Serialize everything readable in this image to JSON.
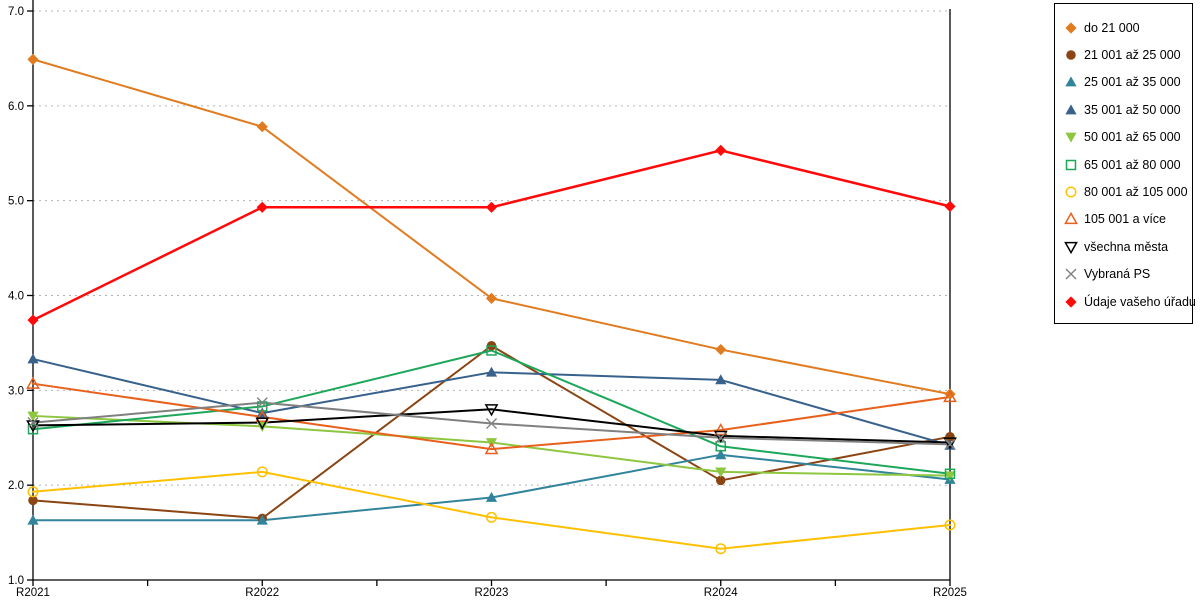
{
  "chart_data": {
    "type": "line",
    "title": "",
    "xlabel": "",
    "ylabel": "",
    "x_categories": [
      "R2021",
      "R2022",
      "R2023",
      "R2024",
      "R2025"
    ],
    "ylim": [
      1.0,
      7.0
    ],
    "y_tick_step": 1.0,
    "y_tick_labels": [
      "1.0",
      "2.0",
      "3.0",
      "4.0",
      "5.0",
      "6.0",
      "7.0"
    ],
    "grid": "horizontal-dotted",
    "grid_color": "#b3b3b3",
    "axis_color": "#000000",
    "legend_position": "right",
    "series": [
      {
        "name": "do 21 000",
        "marker": "diamond",
        "fill": "filled",
        "color": "#E07B20",
        "line_width": 2,
        "values": [
          6.49,
          5.78,
          3.97,
          3.43,
          2.96
        ]
      },
      {
        "name": "21 001 až 25 000",
        "marker": "circle",
        "fill": "filled",
        "color": "#8B4513",
        "line_width": 2,
        "values": [
          1.84,
          1.65,
          3.47,
          2.05,
          2.51
        ]
      },
      {
        "name": "25 001 až 35 000",
        "marker": "triangle-up",
        "fill": "filled",
        "color": "#31849B",
        "line_width": 2,
        "values": [
          1.63,
          1.63,
          1.87,
          2.32,
          2.06
        ]
      },
      {
        "name": "35 001 až 50 000",
        "marker": "triangle-up",
        "fill": "filled",
        "color": "#38618C",
        "line_width": 2,
        "values": [
          3.33,
          2.76,
          3.19,
          3.11,
          2.42
        ]
      },
      {
        "name": "50 001 až 65 000",
        "marker": "triangle-down",
        "fill": "filled",
        "color": "#8DC63F",
        "line_width": 2,
        "values": [
          2.73,
          2.62,
          2.45,
          2.14,
          2.1
        ]
      },
      {
        "name": "65 001 až 80 000",
        "marker": "square",
        "fill": "open",
        "color": "#1DA75A",
        "line_width": 2,
        "values": [
          2.59,
          2.83,
          3.42,
          2.41,
          2.12
        ]
      },
      {
        "name": "80 001 až 105 000",
        "marker": "circle",
        "fill": "open",
        "color": "#FFC000",
        "line_width": 2,
        "values": [
          1.93,
          2.14,
          1.66,
          1.33,
          1.58
        ]
      },
      {
        "name": "105 001 a více",
        "marker": "triangle-up",
        "fill": "open",
        "color": "#E8601C",
        "line_width": 2,
        "values": [
          3.07,
          2.72,
          2.38,
          2.58,
          2.93
        ]
      },
      {
        "name": "všechna města",
        "marker": "triangle-down",
        "fill": "open",
        "color": "#000000",
        "line_width": 2,
        "values": [
          2.63,
          2.66,
          2.8,
          2.52,
          2.45
        ]
      },
      {
        "name": "Vybraná PS",
        "marker": "x",
        "fill": "open",
        "color": "#808080",
        "line_width": 2,
        "values": [
          2.66,
          2.87,
          2.65,
          2.5,
          2.43
        ]
      },
      {
        "name": "Údaje vašeho úřadu",
        "marker": "diamond",
        "fill": "filled",
        "color": "#FF0A0A",
        "line_width": 2.5,
        "values": [
          3.74,
          4.93,
          4.93,
          5.53,
          4.94
        ]
      }
    ]
  }
}
